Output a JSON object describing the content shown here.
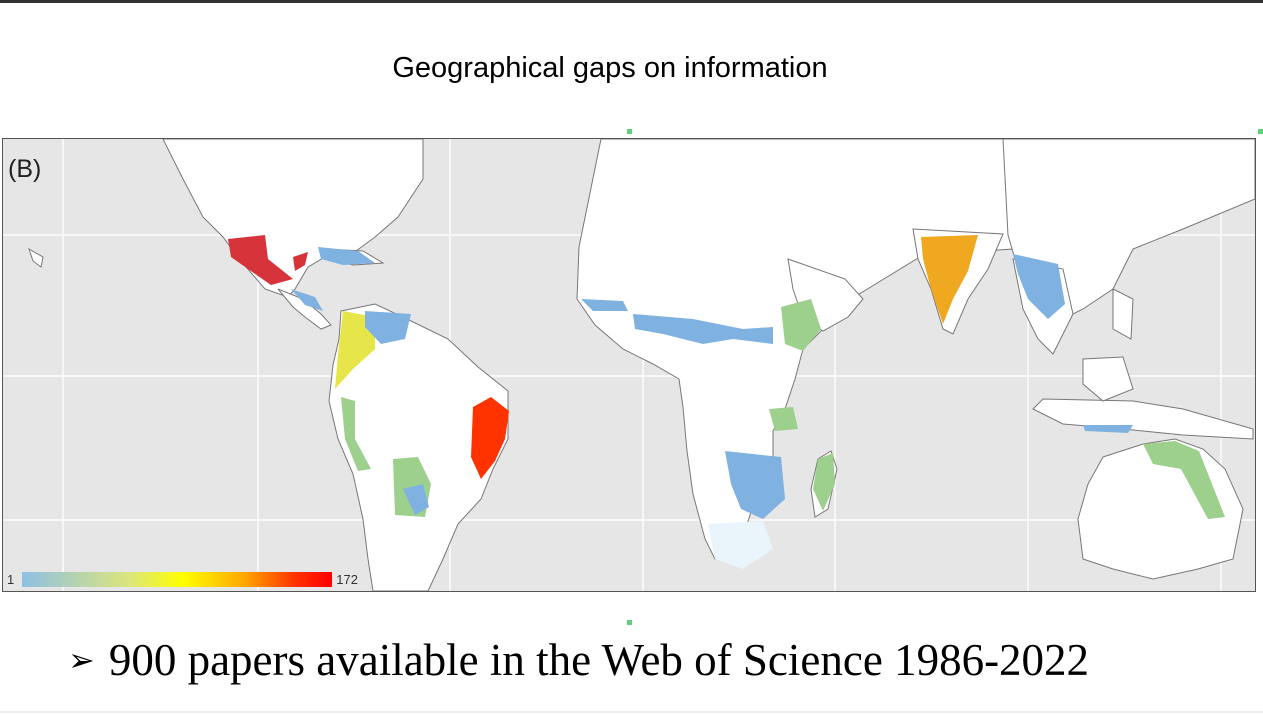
{
  "slide": {
    "title": "Geographical gaps on information",
    "bullet_icon": "arrow-bullet-icon",
    "bullet_text": "900 papers available in the Web of Science 1986-2022"
  },
  "map": {
    "panel_label": "(B)",
    "projection": "equirectangular",
    "extent": "tropics, Americas to Australia",
    "background_color": "#e6e6e6",
    "land_color": "#ffffff",
    "legend": {
      "min_label": "1",
      "max_label": "172",
      "colors": [
        "#8ec0e4",
        "#dce67a",
        "#ffff00",
        "#ffa500",
        "#ff3300",
        "#ff0000"
      ]
    },
    "regions": [
      {
        "area": "Mexico",
        "level": "high",
        "color": "#d6333a"
      },
      {
        "area": "Caribbean / Central America",
        "level": "low",
        "color": "#7fb2e0"
      },
      {
        "area": "Colombia / Ecuador",
        "level": "low-mid",
        "color": "#e6e64a"
      },
      {
        "area": "Venezuela",
        "level": "low",
        "color": "#7fb2e0"
      },
      {
        "area": "Northeast Brazil",
        "level": "very high",
        "color": "#ff3300"
      },
      {
        "area": "Bolivia / Paraguay",
        "level": "low-mid",
        "color": "#9cd08c"
      },
      {
        "area": "Peru coast",
        "level": "low-mid",
        "color": "#9cd08c"
      },
      {
        "area": "Sahel",
        "level": "low",
        "color": "#7fb2e0"
      },
      {
        "area": "East Africa",
        "level": "low-mid",
        "color": "#9cd08c"
      },
      {
        "area": "Southern Africa",
        "level": "low",
        "color": "#7fb2e0"
      },
      {
        "area": "Madagascar",
        "level": "low-mid",
        "color": "#9cd08c"
      },
      {
        "area": "India",
        "level": "mid-high",
        "color": "#f0a820"
      },
      {
        "area": "Southeast Asia",
        "level": "low",
        "color": "#7fb2e0"
      },
      {
        "area": "Northern Australia",
        "level": "low-mid",
        "color": "#9cd08c"
      }
    ]
  }
}
